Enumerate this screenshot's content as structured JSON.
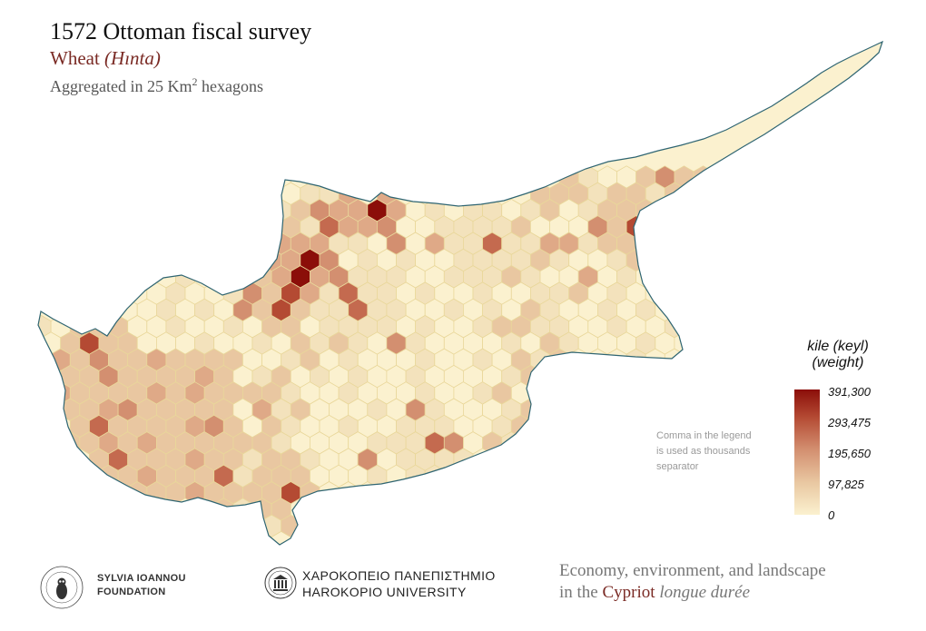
{
  "header": {
    "title": "1572 Ottoman fiscal survey",
    "subtitle_main": "Wheat",
    "subtitle_italic": "(Hınta)",
    "note_prefix": "Aggregated in 25 Km",
    "note_sup": "2",
    "note_suffix": " hexagons"
  },
  "legend": {
    "title_line1": "kile (keyl)",
    "title_line2": "(weight)",
    "labels": [
      "391,300",
      "293,475",
      "195,650",
      "97,825",
      "0"
    ],
    "color_high": "#8b0e09",
    "color_low": "#fbf1cf"
  },
  "separator_note": [
    "Comma in the legend",
    "is used as thousands",
    "separator"
  ],
  "footer": {
    "org1_line1": "SYLVIA IOANNOU",
    "org1_line2": "FOUNDATION",
    "org2_line1": "ΧΑΡΟΚΟΠΕΙΟ ΠΑΝΕΠΙΣΤΗΜΙΟ",
    "org2_line2": "HAROKOPIO UNIVERSITY",
    "project_line1": "Economy, environment, and landscape",
    "project_pre": "in the ",
    "project_cypriot": "Cypriot",
    "project_italic": " longue durée"
  },
  "colors": {
    "coast": "#2f6572",
    "hex_border": "#e9d79a",
    "ramp": [
      "#fbf1cf",
      "#f3e2bc",
      "#e9c7a1",
      "#dfa987",
      "#d38f70",
      "#c46a4f",
      "#b44a33",
      "#8b0e09"
    ]
  }
}
